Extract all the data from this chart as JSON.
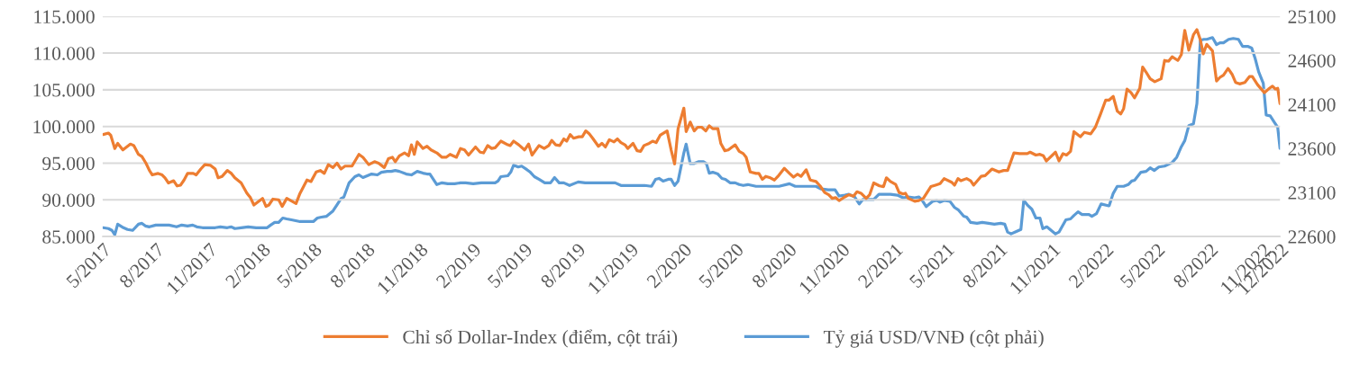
{
  "chart_data": {
    "type": "line",
    "xlim": [
      "2017-05-01",
      "2022-12-01"
    ],
    "xticks": [
      {
        "value": "2017-05",
        "label": "5/2017"
      },
      {
        "value": "2017-08",
        "label": "8/2017"
      },
      {
        "value": "2017-11",
        "label": "11/2017"
      },
      {
        "value": "2018-02",
        "label": "2/2018"
      },
      {
        "value": "2018-05",
        "label": "5/2018"
      },
      {
        "value": "2018-08",
        "label": "8/2018"
      },
      {
        "value": "2018-11",
        "label": "11/2018"
      },
      {
        "value": "2019-02",
        "label": "2/2019"
      },
      {
        "value": "2019-05",
        "label": "5/2019"
      },
      {
        "value": "2019-08",
        "label": "8/2019"
      },
      {
        "value": "2019-11",
        "label": "11/2019"
      },
      {
        "value": "2020-02",
        "label": "2/2020"
      },
      {
        "value": "2020-05",
        "label": "5/2020"
      },
      {
        "value": "2020-08",
        "label": "8/2020"
      },
      {
        "value": "2020-11",
        "label": "11/2020"
      },
      {
        "value": "2021-02",
        "label": "2/2021"
      },
      {
        "value": "2021-05",
        "label": "5/2021"
      },
      {
        "value": "2021-08",
        "label": "8/2021"
      },
      {
        "value": "2021-11",
        "label": "11/2021"
      },
      {
        "value": "2022-02",
        "label": "2/2022"
      },
      {
        "value": "2022-05",
        "label": "5/2022"
      },
      {
        "value": "2022-08",
        "label": "8/2022"
      },
      {
        "value": "2022-11",
        "label": "11/2022"
      },
      {
        "value": "2022-12",
        "label": "12/2022"
      }
    ],
    "ylim": [
      85,
      115
    ],
    "yticks": [
      {
        "value": 85,
        "label": "85.000"
      },
      {
        "value": 90,
        "label": "90.000"
      },
      {
        "value": 95,
        "label": "95.000"
      },
      {
        "value": 100,
        "label": "100.000"
      },
      {
        "value": 105,
        "label": "105.000"
      },
      {
        "value": 110,
        "label": "110.000"
      },
      {
        "value": 115,
        "label": "115.000"
      }
    ],
    "y2lim": [
      22600,
      25100
    ],
    "y2ticks": [
      22600,
      23100,
      23600,
      24100,
      24600,
      25100
    ],
    "grid": "y",
    "legend": "bottom",
    "marker": "none",
    "line_style": "solid",
    "series": [
      {
        "name": "Chỉ số Dollar-Index (điểm, cột trái)",
        "color": "#ed7d31",
        "x": [
          "2017-05-02",
          "2017-05-11",
          "2017-05-15",
          "2017-05-22",
          "2017-05-27",
          "2017-06-05",
          "2017-06-18",
          "2017-06-24",
          "2017-07-02",
          "2017-07-08",
          "2017-07-15",
          "2017-07-21",
          "2017-07-26",
          "2017-08-05",
          "2017-08-12",
          "2017-08-17",
          "2017-08-23",
          "2017-09-01",
          "2017-09-07",
          "2017-09-13",
          "2017-09-19",
          "2017-09-25",
          "2017-10-05",
          "2017-10-10",
          "2017-10-18",
          "2017-10-25",
          "2017-11-04",
          "2017-11-12",
          "2017-11-17",
          "2017-11-24",
          "2017-12-03",
          "2017-12-10",
          "2017-12-16",
          "2017-12-27",
          "2018-01-06",
          "2018-01-12",
          "2018-01-18",
          "2018-02-02",
          "2018-02-08",
          "2018-02-13",
          "2018-02-20",
          "2018-03-02",
          "2018-03-08",
          "2018-03-16",
          "2018-04-01",
          "2018-04-08",
          "2018-04-20",
          "2018-04-27",
          "2018-05-06",
          "2018-05-13",
          "2018-05-20",
          "2018-05-27",
          "2018-06-04",
          "2018-06-11",
          "2018-06-18",
          "2018-06-25",
          "2018-07-07",
          "2018-07-19",
          "2018-07-26",
          "2018-08-05",
          "2018-08-15",
          "2018-08-22",
          "2018-09-01",
          "2018-09-08",
          "2018-09-15",
          "2018-09-20",
          "2018-09-27",
          "2018-10-06",
          "2018-10-13",
          "2018-10-18",
          "2018-10-23",
          "2018-10-28",
          "2018-11-07",
          "2018-11-14",
          "2018-11-21",
          "2018-12-01",
          "2018-12-10",
          "2018-12-17",
          "2018-12-24",
          "2019-01-04",
          "2019-01-11",
          "2019-01-18",
          "2019-01-25",
          "2019-02-06",
          "2019-02-14",
          "2019-02-20",
          "2019-02-27",
          "2019-03-06",
          "2019-03-12",
          "2019-03-22",
          "2019-04-03",
          "2019-04-07",
          "2019-04-13",
          "2019-04-22",
          "2019-05-02",
          "2019-05-09",
          "2019-05-15",
          "2019-05-27",
          "2019-06-05",
          "2019-06-13",
          "2019-06-18",
          "2019-06-25",
          "2019-07-02",
          "2019-07-09",
          "2019-07-14",
          "2019-07-20",
          "2019-07-26",
          "2019-08-04",
          "2019-08-10",
          "2019-08-16",
          "2019-08-22",
          "2019-08-28",
          "2019-09-07",
          "2019-09-13",
          "2019-09-19",
          "2019-09-26",
          "2019-10-04",
          "2019-10-10",
          "2019-10-16",
          "2019-10-23",
          "2019-10-28",
          "2019-11-06",
          "2019-11-13",
          "2019-11-19",
          "2019-11-25",
          "2019-12-04",
          "2019-12-10",
          "2019-12-16",
          "2019-12-23",
          "2020-01-04",
          "2020-01-11",
          "2020-01-17",
          "2020-01-23",
          "2020-02-02",
          "2020-02-06",
          "2020-02-13",
          "2020-02-20",
          "2020-02-26",
          "2020-03-04",
          "2020-03-11",
          "2020-03-17",
          "2020-03-23",
          "2020-04-01",
          "2020-04-06",
          "2020-04-13",
          "2020-04-19",
          "2020-05-01",
          "2020-05-08",
          "2020-05-15",
          "2020-05-20",
          "2020-05-27",
          "2020-06-06",
          "2020-06-11",
          "2020-06-17",
          "2020-06-23",
          "2020-07-01",
          "2020-07-08",
          "2020-07-14",
          "2020-07-25",
          "2020-08-03",
          "2020-08-10",
          "2020-08-17",
          "2020-08-23",
          "2020-09-01",
          "2020-09-08",
          "2020-09-18",
          "2020-09-25",
          "2020-10-03",
          "2020-10-10",
          "2020-10-16",
          "2020-10-22",
          "2020-10-28",
          "2020-11-07",
          "2020-11-14",
          "2020-11-22",
          "2020-11-28",
          "2020-12-05",
          "2020-12-14",
          "2020-12-20",
          "2020-12-27",
          "2021-01-06",
          "2021-01-13",
          "2021-01-18",
          "2021-01-25",
          "2021-02-03",
          "2021-02-09",
          "2021-02-16",
          "2021-02-20",
          "2021-02-25",
          "2021-03-08",
          "2021-03-15",
          "2021-03-23",
          "2021-04-05",
          "2021-04-13",
          "2021-04-21",
          "2021-04-28",
          "2021-05-11",
          "2021-05-16",
          "2021-05-22",
          "2021-05-27",
          "2021-06-06",
          "2021-06-13",
          "2021-06-18",
          "2021-07-01",
          "2021-07-08",
          "2021-07-20",
          "2021-08-01",
          "2021-08-09",
          "2021-08-16",
          "2021-08-27",
          "2021-09-06",
          "2021-09-19",
          "2021-09-24",
          "2021-10-04",
          "2021-10-11",
          "2021-10-17",
          "2021-10-22",
          "2021-11-07",
          "2021-11-13",
          "2021-11-20",
          "2021-11-26",
          "2021-12-03",
          "2021-12-09",
          "2021-12-20",
          "2021-12-27",
          "2022-01-07",
          "2022-01-15",
          "2022-01-24",
          "2022-02-02",
          "2022-02-08",
          "2022-02-15",
          "2022-02-22",
          "2022-02-28",
          "2022-03-05",
          "2022-03-11",
          "2022-03-18",
          "2022-03-24",
          "2022-04-02",
          "2022-04-07",
          "2022-04-13",
          "2022-04-20",
          "2022-04-28",
          "2022-05-09",
          "2022-05-15",
          "2022-05-22",
          "2022-05-28",
          "2022-06-07",
          "2022-06-13",
          "2022-06-19",
          "2022-06-26",
          "2022-07-04",
          "2022-07-10",
          "2022-07-16",
          "2022-07-21",
          "2022-07-27",
          "2022-08-06",
          "2022-08-13",
          "2022-08-19",
          "2022-08-25",
          "2022-09-02",
          "2022-09-09",
          "2022-09-15",
          "2022-09-22",
          "2022-10-01",
          "2022-10-09",
          "2022-10-14",
          "2022-10-23",
          "2022-11-04",
          "2022-11-11",
          "2022-11-18",
          "2022-11-23",
          "2022-11-27",
          "2022-12-01"
        ],
        "values": [
          98.9,
          99.1,
          98.8,
          97.0,
          97.7,
          96.8,
          97.6,
          97.4,
          96.2,
          95.9,
          95.0,
          94.0,
          93.4,
          93.6,
          93.4,
          93.0,
          92.3,
          92.6,
          91.9,
          92.0,
          92.7,
          93.6,
          93.6,
          93.4,
          94.2,
          94.8,
          94.7,
          94.2,
          93.0,
          93.2,
          94.0,
          93.6,
          93.0,
          92.3,
          90.9,
          90.3,
          89.3,
          90.2,
          89.1,
          89.3,
          90.1,
          90.0,
          89.1,
          90.2,
          89.5,
          90.9,
          92.7,
          92.5,
          93.8,
          94.0,
          93.6,
          94.8,
          94.4,
          95.0,
          94.2,
          94.6,
          94.6,
          96.2,
          95.8,
          94.8,
          95.2,
          95.0,
          94.4,
          95.6,
          95.8,
          95.2,
          96.0,
          96.4,
          96.0,
          97.5,
          96.2,
          97.9,
          97.0,
          97.3,
          96.8,
          96.4,
          95.8,
          95.8,
          96.2,
          95.8,
          97.0,
          96.8,
          96.1,
          97.2,
          96.5,
          96.4,
          97.4,
          97.0,
          97.1,
          98.0,
          97.5,
          97.4,
          98.0,
          97.5,
          96.8,
          97.6,
          96.1,
          97.4,
          97.0,
          97.4,
          98.1,
          97.5,
          97.4,
          98.3,
          98.0,
          98.9,
          98.4,
          98.6,
          98.6,
          99.4,
          99.0,
          98.4,
          97.3,
          97.7,
          97.2,
          98.2,
          97.9,
          98.3,
          97.8,
          97.5,
          97.0,
          97.7,
          96.7,
          96.6,
          97.4,
          97.7,
          98.0,
          97.8,
          98.8,
          99.4,
          96.8,
          94.9,
          99.7,
          102.5,
          99.3,
          100.6,
          99.4,
          99.9,
          99.9,
          99.4,
          100.1,
          99.7,
          99.7,
          97.7,
          96.7,
          96.8,
          97.5,
          96.6,
          96.3,
          95.8,
          93.8,
          93.6,
          93.6,
          92.8,
          93.2,
          93.0,
          92.7,
          93.2,
          94.3,
          93.6,
          93.1,
          93.5,
          93.2,
          94.1,
          92.7,
          92.5,
          91.9,
          91.0,
          90.7,
          90.2,
          90.3,
          89.9,
          90.4,
          90.7,
          90.5,
          91.1,
          90.9,
          90.2,
          90.7,
          92.3,
          91.9,
          91.8,
          93.0,
          92.5,
          92.1,
          91.0,
          90.8,
          90.9,
          90.2,
          89.8,
          89.9,
          90.2,
          91.8,
          92.0,
          92.2,
          92.9,
          92.4,
          92.0,
          92.9,
          92.6,
          92.9,
          92.6,
          92.0,
          93.2,
          93.3,
          94.2,
          93.8,
          94.0,
          94.0,
          96.4,
          96.3,
          96.3,
          96.5,
          96.1,
          96.2,
          96.0,
          95.3,
          96.5,
          95.3,
          96.3,
          96.1,
          96.6,
          99.3,
          98.6,
          99.2,
          99.0,
          99.9,
          101.7,
          103.6,
          103.6,
          104.1,
          102.1,
          101.7,
          102.4,
          105.1,
          104.6,
          103.9,
          105.2,
          108.1,
          107.4,
          106.5,
          106.1,
          106.5,
          109.0,
          108.9,
          109.5,
          109.0,
          109.8,
          113.1,
          110.4,
          112.5,
          113.2,
          111.8,
          109.9,
          111.2,
          110.3,
          106.2,
          106.7,
          107.0,
          107.9,
          107.1,
          106.0,
          105.8,
          106.0,
          106.8,
          106.8,
          105.7,
          104.6,
          105.1,
          105.5,
          105.1,
          105.2,
          103.1
        ]
      },
      {
        "name": "Tỷ giá USD/VNĐ (cột phải)",
        "color": "#5b9bd5",
        "axis": "y2",
        "x": [
          "2017-05-02",
          "2017-05-11",
          "2017-05-17",
          "2017-05-22",
          "2017-05-27",
          "2017-06-06",
          "2017-06-13",
          "2017-06-22",
          "2017-07-02",
          "2017-07-08",
          "2017-07-14",
          "2017-07-21",
          "2017-08-01",
          "2017-08-10",
          "2017-08-24",
          "2017-09-06",
          "2017-09-15",
          "2017-09-25",
          "2017-10-04",
          "2017-10-11",
          "2017-10-21",
          "2017-11-02",
          "2017-11-12",
          "2017-11-21",
          "2017-12-03",
          "2017-12-10",
          "2017-12-16",
          "2017-12-27",
          "2018-01-08",
          "2018-01-22",
          "2018-02-04",
          "2018-02-10",
          "2018-02-16",
          "2018-02-23",
          "2018-03-02",
          "2018-03-09",
          "2018-03-16",
          "2018-03-24",
          "2018-04-08",
          "2018-04-20",
          "2018-05-01",
          "2018-05-08",
          "2018-05-15",
          "2018-05-24",
          "2018-06-04",
          "2018-06-11",
          "2018-06-18",
          "2018-06-23",
          "2018-07-02",
          "2018-07-12",
          "2018-07-19",
          "2018-07-26",
          "2018-08-10",
          "2018-08-20",
          "2018-08-27",
          "2018-09-06",
          "2018-09-13",
          "2018-09-20",
          "2018-09-27",
          "2018-10-09",
          "2018-10-18",
          "2018-10-28",
          "2018-11-07",
          "2018-11-14",
          "2018-11-19",
          "2018-12-01",
          "2018-12-10",
          "2018-12-20",
          "2019-01-01",
          "2019-01-11",
          "2019-01-20",
          "2019-02-02",
          "2019-02-16",
          "2019-03-12",
          "2019-03-17",
          "2019-03-22",
          "2019-04-03",
          "2019-04-08",
          "2019-04-13",
          "2019-04-21",
          "2019-04-27",
          "2019-05-06",
          "2019-05-12",
          "2019-05-19",
          "2019-05-27",
          "2019-06-06",
          "2019-06-16",
          "2019-06-23",
          "2019-07-01",
          "2019-07-09",
          "2019-07-19",
          "2019-08-03",
          "2019-08-15",
          "2019-09-11",
          "2019-10-06",
          "2019-10-16",
          "2019-11-02",
          "2019-11-26",
          "2019-12-08",
          "2019-12-15",
          "2019-12-21",
          "2019-12-28",
          "2020-01-06",
          "2020-01-11",
          "2020-01-17",
          "2020-01-23",
          "2020-02-02",
          "2020-02-06",
          "2020-02-13",
          "2020-02-20",
          "2020-02-28",
          "2020-03-07",
          "2020-03-12",
          "2020-03-17",
          "2020-03-23",
          "2020-04-01",
          "2020-04-08",
          "2020-04-14",
          "2020-04-22",
          "2020-05-01",
          "2020-05-08",
          "2020-05-15",
          "2020-05-23",
          "2020-06-06",
          "2020-06-21",
          "2020-07-16",
          "2020-08-03",
          "2020-08-13",
          "2020-09-04",
          "2020-09-18",
          "2020-09-27",
          "2020-10-09",
          "2020-10-21",
          "2020-10-28",
          "2020-11-07",
          "2020-11-14",
          "2020-11-24",
          "2020-12-02",
          "2020-12-08",
          "2020-12-15",
          "2020-12-27",
          "2021-01-05",
          "2021-01-13",
          "2021-01-25",
          "2021-02-06",
          "2021-02-16",
          "2021-02-25",
          "2021-03-08",
          "2021-03-15",
          "2021-03-20",
          "2021-03-28",
          "2021-04-08",
          "2021-04-15",
          "2021-04-21",
          "2021-04-28",
          "2021-05-08",
          "2021-05-16",
          "2021-05-23",
          "2021-06-01",
          "2021-06-06",
          "2021-06-13",
          "2021-06-24",
          "2021-07-03",
          "2021-07-14",
          "2021-07-24",
          "2021-08-04",
          "2021-08-11",
          "2021-08-16",
          "2021-08-22",
          "2021-09-01",
          "2021-09-08",
          "2021-09-13",
          "2021-09-19",
          "2021-09-27",
          "2021-10-04",
          "2021-10-11",
          "2021-10-16",
          "2021-10-23",
          "2021-11-07",
          "2021-11-13",
          "2021-11-25",
          "2021-12-03",
          "2021-12-09",
          "2021-12-16",
          "2021-12-23",
          "2022-01-04",
          "2022-01-09",
          "2022-01-17",
          "2022-01-25",
          "2022-02-06",
          "2022-02-08",
          "2022-02-15",
          "2022-02-22",
          "2022-03-05",
          "2022-03-13",
          "2022-03-19",
          "2022-03-24",
          "2022-04-04",
          "2022-04-13",
          "2022-04-20",
          "2022-04-27",
          "2022-05-05",
          "2022-05-15",
          "2022-05-28",
          "2022-06-05",
          "2022-06-13",
          "2022-06-19",
          "2022-06-26",
          "2022-07-04",
          "2022-07-10",
          "2022-07-16",
          "2022-07-22",
          "2022-07-27",
          "2022-08-06",
          "2022-08-13",
          "2022-08-19",
          "2022-08-25",
          "2022-09-03",
          "2022-09-11",
          "2022-09-20",
          "2022-09-27",
          "2022-10-06",
          "2022-10-13",
          "2022-10-19",
          "2022-10-25",
          "2022-11-02",
          "2022-11-07",
          "2022-11-14",
          "2022-11-21",
          "2022-11-27",
          "2022-12-01"
        ],
        "values": [
          22700,
          22690,
          22670,
          22620,
          22740,
          22700,
          22680,
          22670,
          22740,
          22750,
          22720,
          22710,
          22730,
          22730,
          22730,
          22710,
          22730,
          22720,
          22730,
          22710,
          22700,
          22700,
          22700,
          22710,
          22700,
          22710,
          22690,
          22700,
          22710,
          22700,
          22700,
          22700,
          22730,
          22760,
          22760,
          22810,
          22800,
          22790,
          22770,
          22770,
          22770,
          22810,
          22820,
          22830,
          22890,
          22960,
          23030,
          23050,
          23210,
          23280,
          23300,
          23270,
          23310,
          23300,
          23330,
          23340,
          23340,
          23350,
          23340,
          23310,
          23300,
          23340,
          23320,
          23310,
          23310,
          23190,
          23210,
          23200,
          23200,
          23210,
          23210,
          23200,
          23210,
          23210,
          23230,
          23280,
          23290,
          23330,
          23410,
          23390,
          23400,
          23360,
          23330,
          23280,
          23250,
          23210,
          23210,
          23270,
          23210,
          23210,
          23180,
          23220,
          23210,
          23210,
          23210,
          23180,
          23180,
          23180,
          23170,
          23250,
          23260,
          23230,
          23250,
          23250,
          23180,
          23230,
          23550,
          23650,
          23430,
          23430,
          23450,
          23450,
          23430,
          23320,
          23330,
          23310,
          23260,
          23250,
          23210,
          23210,
          23190,
          23180,
          23190,
          23170,
          23170,
          23170,
          23200,
          23170,
          23170,
          23170,
          23140,
          23130,
          23130,
          23060,
          23070,
          23080,
          23050,
          22970,
          23020,
          23020,
          23020,
          23080,
          23080,
          23080,
          23070,
          23040,
          23050,
          23040,
          23050,
          23020,
          22940,
          23000,
          23010,
          22990,
          23010,
          23000,
          22930,
          22900,
          22830,
          22820,
          22760,
          22750,
          22760,
          22750,
          22740,
          22750,
          22740,
          22650,
          22630,
          22660,
          22680,
          23010,
          22960,
          22910,
          22810,
          22810,
          22690,
          22710,
          22630,
          22650,
          22790,
          22800,
          22840,
          22880,
          22850,
          22850,
          22830,
          22860,
          22970,
          22950,
          22950,
          23090,
          23170,
          23170,
          23190,
          23230,
          23240,
          23330,
          23340,
          23380,
          23350,
          23390,
          23400,
          23440,
          23500,
          23620,
          23690,
          23860,
          23880,
          24110,
          24830,
          24840,
          24840,
          24860,
          24780,
          24800,
          24800,
          24840,
          24850,
          24840,
          24760,
          24760,
          24740,
          24620,
          24470,
          24340,
          23980,
          23970,
          23900,
          23840,
          23600
        ]
      }
    ]
  }
}
